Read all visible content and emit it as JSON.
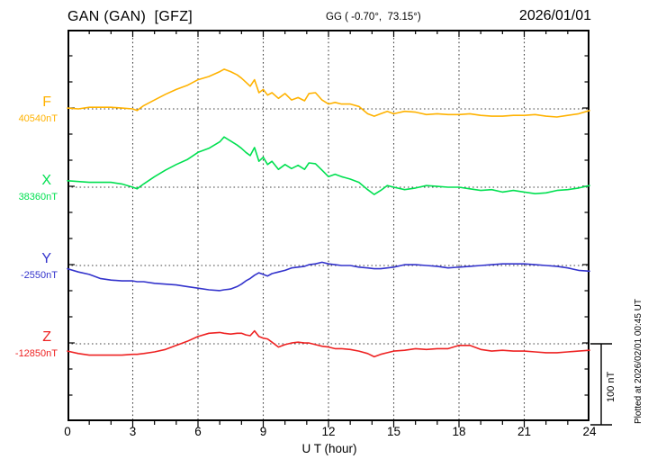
{
  "header": {
    "station_title": "GAN (GAN)  [GFZ]",
    "coords": "GG ( -0.70°,  73.15°)",
    "date": "2026/01/01"
  },
  "plotted_note": "Plotted at 2026/02/01 00:45 UT",
  "scale_bar": {
    "label": "100 nT",
    "amount_nT": 100
  },
  "colors": {
    "F": "#ffb200",
    "X": "#00e050",
    "Y": "#3333cc",
    "Z": "#ee2222",
    "frame": "#000000",
    "grid": "#444444"
  },
  "chart_data": {
    "type": "line",
    "station": "GAN",
    "observatory_code": "GAN",
    "institute": "GFZ",
    "xlabel": "U T (hour)",
    "xlim": [
      0,
      24
    ],
    "x_ticks": [
      0,
      3,
      6,
      9,
      12,
      15,
      18,
      21,
      24
    ],
    "x_tick_labels": [
      "0",
      "3",
      "6",
      "9",
      "12",
      "15",
      "18",
      "21",
      "24"
    ],
    "grid": "dotted vertical lines every 3 h; dotted horizontal baseline per component",
    "legend_position": "left margin, one colored label per component",
    "hours": [
      0,
      0.5,
      1,
      1.5,
      2,
      2.5,
      3,
      3.2,
      3.5,
      4,
      4.5,
      5,
      5.5,
      6,
      6.5,
      7,
      7.2,
      7.5,
      7.8,
      8,
      8.2,
      8.4,
      8.6,
      8.8,
      9,
      9.2,
      9.4,
      9.7,
      10,
      10.3,
      10.6,
      10.9,
      11.1,
      11.4,
      11.7,
      12,
      12.3,
      12.6,
      13,
      13.4,
      13.8,
      14.1,
      14.4,
      14.7,
      15,
      15.5,
      16,
      16.5,
      17,
      17.5,
      18,
      18.5,
      19,
      19.5,
      20,
      20.5,
      21,
      21.5,
      22,
      22.5,
      23,
      23.5,
      24
    ],
    "series": [
      {
        "name": "F",
        "base_label": "40540nT",
        "base_nT": 40540,
        "color_key": "F",
        "values_nT": [
          40541,
          40540,
          40542,
          40542,
          40542,
          40541,
          40540,
          40538,
          40544,
          40551,
          40558,
          40564,
          40569,
          40576,
          40580,
          40586,
          40589,
          40586,
          40582,
          40578,
          40573,
          40568,
          40576,
          40560,
          40564,
          40557,
          40560,
          40553,
          40559,
          40551,
          40554,
          40550,
          40559,
          40560,
          40551,
          40546,
          40548,
          40546,
          40546,
          40543,
          40534,
          40531,
          40534,
          40537,
          40534,
          40537,
          40536,
          40533,
          40534,
          40533,
          40533,
          40534,
          40532,
          40531,
          40531,
          40532,
          40532,
          40533,
          40531,
          40530,
          40532,
          40534,
          40538
        ]
      },
      {
        "name": "X",
        "base_label": "38360nT",
        "base_nT": 38360,
        "color_key": "X",
        "values_nT": [
          38368,
          38367,
          38366,
          38366,
          38366,
          38364,
          38360,
          38358,
          38364,
          38373,
          38381,
          38388,
          38394,
          38403,
          38408,
          38416,
          38422,
          38417,
          38412,
          38408,
          38403,
          38399,
          38409,
          38392,
          38397,
          38388,
          38392,
          38382,
          38388,
          38383,
          38387,
          38382,
          38390,
          38389,
          38381,
          38373,
          38376,
          38373,
          38370,
          38366,
          38357,
          38351,
          38356,
          38362,
          38360,
          38357,
          38359,
          38362,
          38361,
          38360,
          38360,
          38358,
          38356,
          38357,
          38354,
          38356,
          38354,
          38352,
          38353,
          38356,
          38357,
          38359,
          38362
        ]
      },
      {
        "name": "Y",
        "base_label": "-2550nT",
        "base_nT": -2550,
        "color_key": "Y",
        "values_nT": [
          -2554,
          -2558,
          -2561,
          -2566,
          -2568,
          -2569,
          -2569,
          -2570,
          -2570,
          -2572,
          -2573,
          -2574,
          -2576,
          -2578,
          -2580,
          -2581,
          -2580,
          -2579,
          -2576,
          -2573,
          -2569,
          -2566,
          -2562,
          -2559,
          -2561,
          -2563,
          -2560,
          -2558,
          -2556,
          -2553,
          -2552,
          -2551,
          -2549,
          -2548,
          -2546,
          -2548,
          -2549,
          -2550,
          -2550,
          -2552,
          -2553,
          -2554,
          -2554,
          -2553,
          -2552,
          -2549,
          -2549,
          -2550,
          -2551,
          -2553,
          -2552,
          -2551,
          -2550,
          -2549,
          -2548,
          -2548,
          -2548,
          -2549,
          -2550,
          -2551,
          -2553,
          -2556,
          -2557
        ]
      },
      {
        "name": "Z",
        "base_label": "-12850nT",
        "base_nT": -12850,
        "color_key": "Z",
        "values_nT": [
          -12859,
          -12862,
          -12864,
          -12864,
          -12864,
          -12864,
          -12863,
          -12863,
          -12862,
          -12860,
          -12857,
          -12852,
          -12847,
          -12841,
          -12837,
          -12836,
          -12837,
          -12838,
          -12837,
          -12837,
          -12839,
          -12840,
          -12834,
          -12841,
          -12843,
          -12844,
          -12848,
          -12854,
          -12851,
          -12849,
          -12848,
          -12849,
          -12849,
          -12851,
          -12853,
          -12854,
          -12856,
          -12856,
          -12857,
          -12859,
          -12862,
          -12866,
          -12863,
          -12861,
          -12859,
          -12858,
          -12856,
          -12857,
          -12856,
          -12856,
          -12852,
          -12852,
          -12857,
          -12859,
          -12858,
          -12859,
          -12859,
          -12860,
          -12861,
          -12861,
          -12860,
          -12859,
          -12858
        ]
      }
    ]
  }
}
